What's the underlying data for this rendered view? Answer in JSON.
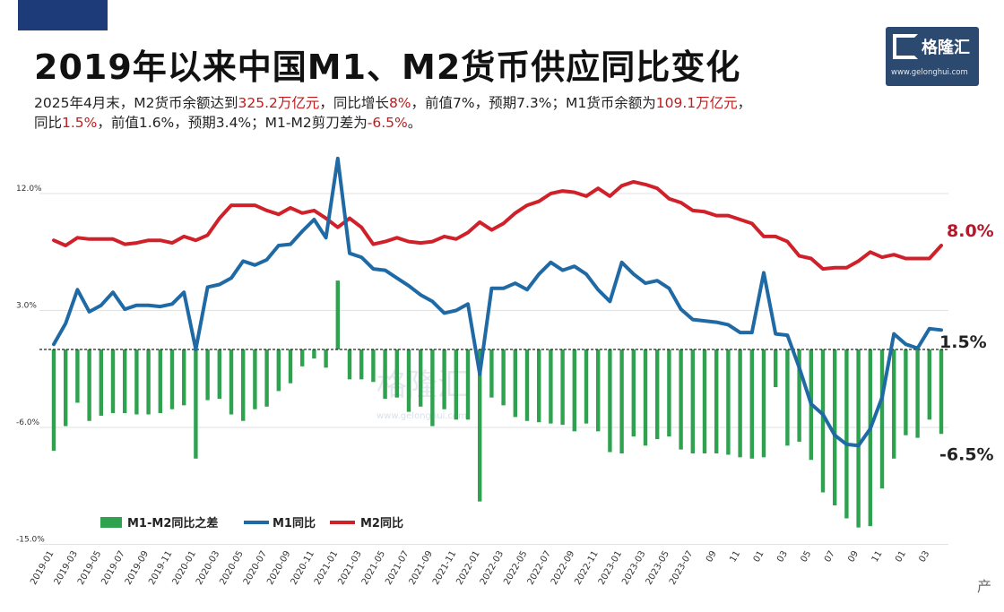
{
  "header": {
    "title": "2019年以来中国M1、M2货币供应同比变化",
    "sub_line1_a": "2025年4月末，M2货币余额达到",
    "sub_line1_b": "325.2万亿元",
    "sub_line1_c": "，同比增长",
    "sub_line1_d": "8%",
    "sub_line1_e": "，前值7%，预期7.3%；M1货币余额为",
    "sub_line1_f": "109.1万亿元",
    "sub_line1_g": "，",
    "sub_line2_a": "同比",
    "sub_line2_b": "1.5%",
    "sub_line2_c": "，前值1.6%，预期3.4%；M1-M2剪刀差为",
    "sub_line2_d": "-6.5%",
    "sub_line2_e": "。"
  },
  "logo": {
    "name": "格隆汇",
    "url": "www.gelonghui.com"
  },
  "source_char": "产",
  "colors": {
    "m1": "#1f6aa5",
    "m2": "#d0212a",
    "gap": "#2ea24f",
    "title_tab": "#1c3b78"
  },
  "chart_data": {
    "type": "line",
    "x": [
      "2019-01",
      "2019-02",
      "2019-03",
      "2019-04",
      "2019-05",
      "2019-06",
      "2019-07",
      "2019-08",
      "2019-09",
      "2019-10",
      "2019-11",
      "2019-12",
      "2020-01",
      "2020-02",
      "2020-03",
      "2020-04",
      "2020-05",
      "2020-06",
      "2020-07",
      "2020-08",
      "2020-09",
      "2020-10",
      "2020-11",
      "2020-12",
      "2021-01",
      "2021-02",
      "2021-03",
      "2021-04",
      "2021-05",
      "2021-06",
      "2021-07",
      "2021-08",
      "2021-09",
      "2021-10",
      "2021-11",
      "2021-12",
      "2022-01",
      "2022-02",
      "2022-03",
      "2022-04",
      "2022-05",
      "2022-06",
      "2022-07",
      "2022-08",
      "2022-09",
      "2022-10",
      "2022-11",
      "2022-12",
      "2023-01",
      "2023-02",
      "2023-03",
      "2023-04",
      "2023-05",
      "2023-06",
      "2023-07",
      "2023-08",
      "2023-09",
      "2023-10",
      "2023-11",
      "2023-12",
      "2024-01",
      "2024-02",
      "2024-03",
      "2024-04",
      "2024-05",
      "2024-06",
      "2024-07",
      "2024-08",
      "2024-09",
      "2024-10",
      "2024-11",
      "2024-12",
      "2025-01",
      "2025-02",
      "2025-03",
      "2025-04"
    ],
    "x_tick_labels": [
      "2019-01",
      "2019-03",
      "2019-05",
      "2019-07",
      "2019-09",
      "2019-11",
      "2020-01",
      "2020-03",
      "2020-05",
      "2020-07",
      "2020-09",
      "2020-11",
      "2021-01",
      "2021-03",
      "2021-05",
      "2021-07",
      "2021-09",
      "2021-11",
      "2022-01",
      "2022-03",
      "2022-05",
      "2022-07",
      "2022-09",
      "2022-11",
      "2023-01",
      "2023-03",
      "2023-05",
      "2023-07",
      "09",
      "11",
      "01",
      "03",
      "05",
      "07",
      "09",
      "11",
      "01",
      "03"
    ],
    "y_ticks": [
      "12.0%",
      "3.0%",
      "-6.0%",
      "-15.0%"
    ],
    "ylim": [
      -15,
      15
    ],
    "annotations": [
      {
        "text": "8.0%",
        "series": "M2同比"
      },
      {
        "text": "1.5%",
        "series": "M1同比"
      },
      {
        "text": "-6.5%",
        "series": "M1-M2同比之差"
      }
    ],
    "watermark": "格隆汇",
    "watermark_url": "www.gelonghui.com",
    "series": [
      {
        "name": "M1-M2同比之差",
        "type": "bar",
        "values": [
          -7.8,
          -5.9,
          -4.1,
          -5.5,
          -5.1,
          -4.9,
          -4.9,
          -5.0,
          -5.0,
          -4.9,
          -4.6,
          -4.3,
          -8.4,
          -3.9,
          -3.8,
          -5.0,
          -5.5,
          -4.6,
          -4.4,
          -3.2,
          -2.6,
          -1.3,
          -0.7,
          -1.4,
          5.3,
          -2.3,
          -2.3,
          -2.5,
          -3.8,
          -3.7,
          -4.8,
          -4.4,
          -5.9,
          -4.6,
          -5.4,
          -5.4,
          -11.7,
          -3.7,
          -4.3,
          -5.2,
          -5.5,
          -5.6,
          -5.7,
          -5.8,
          -6.3,
          -5.7,
          -6.3,
          -7.9,
          -8.0,
          -6.7,
          -7.4,
          -6.9,
          -6.7,
          -7.7,
          -8.0,
          -8.0,
          -8.0,
          -8.1,
          -8.3,
          -8.4,
          -8.3,
          -2.9,
          -7.4,
          -7.1,
          -8.5,
          -11.0,
          -12.0,
          -13.0,
          -13.7,
          -13.6,
          -10.7,
          -8.4,
          -6.6,
          -6.8,
          -5.4,
          -6.5
        ]
      },
      {
        "name": "M1同比",
        "type": "line",
        "values": [
          0.4,
          2.0,
          4.6,
          2.9,
          3.4,
          4.4,
          3.1,
          3.4,
          3.4,
          3.3,
          3.5,
          4.4,
          0.0,
          4.8,
          5.0,
          5.5,
          6.8,
          6.5,
          6.9,
          8.0,
          8.1,
          9.1,
          10.0,
          8.6,
          14.7,
          7.4,
          7.1,
          6.2,
          6.1,
          5.5,
          4.9,
          4.2,
          3.7,
          2.8,
          3.0,
          3.5,
          -1.9,
          4.7,
          4.7,
          5.1,
          4.6,
          5.8,
          6.7,
          6.1,
          6.4,
          5.8,
          4.6,
          3.7,
          6.7,
          5.8,
          5.1,
          5.3,
          4.7,
          3.1,
          2.3,
          2.2,
          2.1,
          1.9,
          1.3,
          1.3,
          5.9,
          1.2,
          1.1,
          -1.4,
          -4.2,
          -5.0,
          -6.6,
          -7.3,
          -7.4,
          -6.1,
          -3.7,
          1.2,
          0.4,
          0.1,
          1.6,
          1.5
        ]
      },
      {
        "name": "M2同比",
        "type": "line",
        "values": [
          8.4,
          8.0,
          8.6,
          8.5,
          8.5,
          8.5,
          8.1,
          8.2,
          8.4,
          8.4,
          8.2,
          8.7,
          8.4,
          8.8,
          10.1,
          11.1,
          11.1,
          11.1,
          10.7,
          10.4,
          10.9,
          10.5,
          10.7,
          10.1,
          9.4,
          10.1,
          9.4,
          8.1,
          8.3,
          8.6,
          8.3,
          8.2,
          8.3,
          8.7,
          8.5,
          9.0,
          9.8,
          9.2,
          9.7,
          10.5,
          11.1,
          11.4,
          12.0,
          12.2,
          12.1,
          11.8,
          12.4,
          11.8,
          12.6,
          12.9,
          12.7,
          12.4,
          11.6,
          11.3,
          10.7,
          10.6,
          10.3,
          10.3,
          10.0,
          9.7,
          8.7,
          8.7,
          8.3,
          7.2,
          7.0,
          6.2,
          6.3,
          6.3,
          6.8,
          7.5,
          7.1,
          7.3,
          7.0,
          7.0,
          7.0,
          8.0
        ]
      }
    ]
  }
}
